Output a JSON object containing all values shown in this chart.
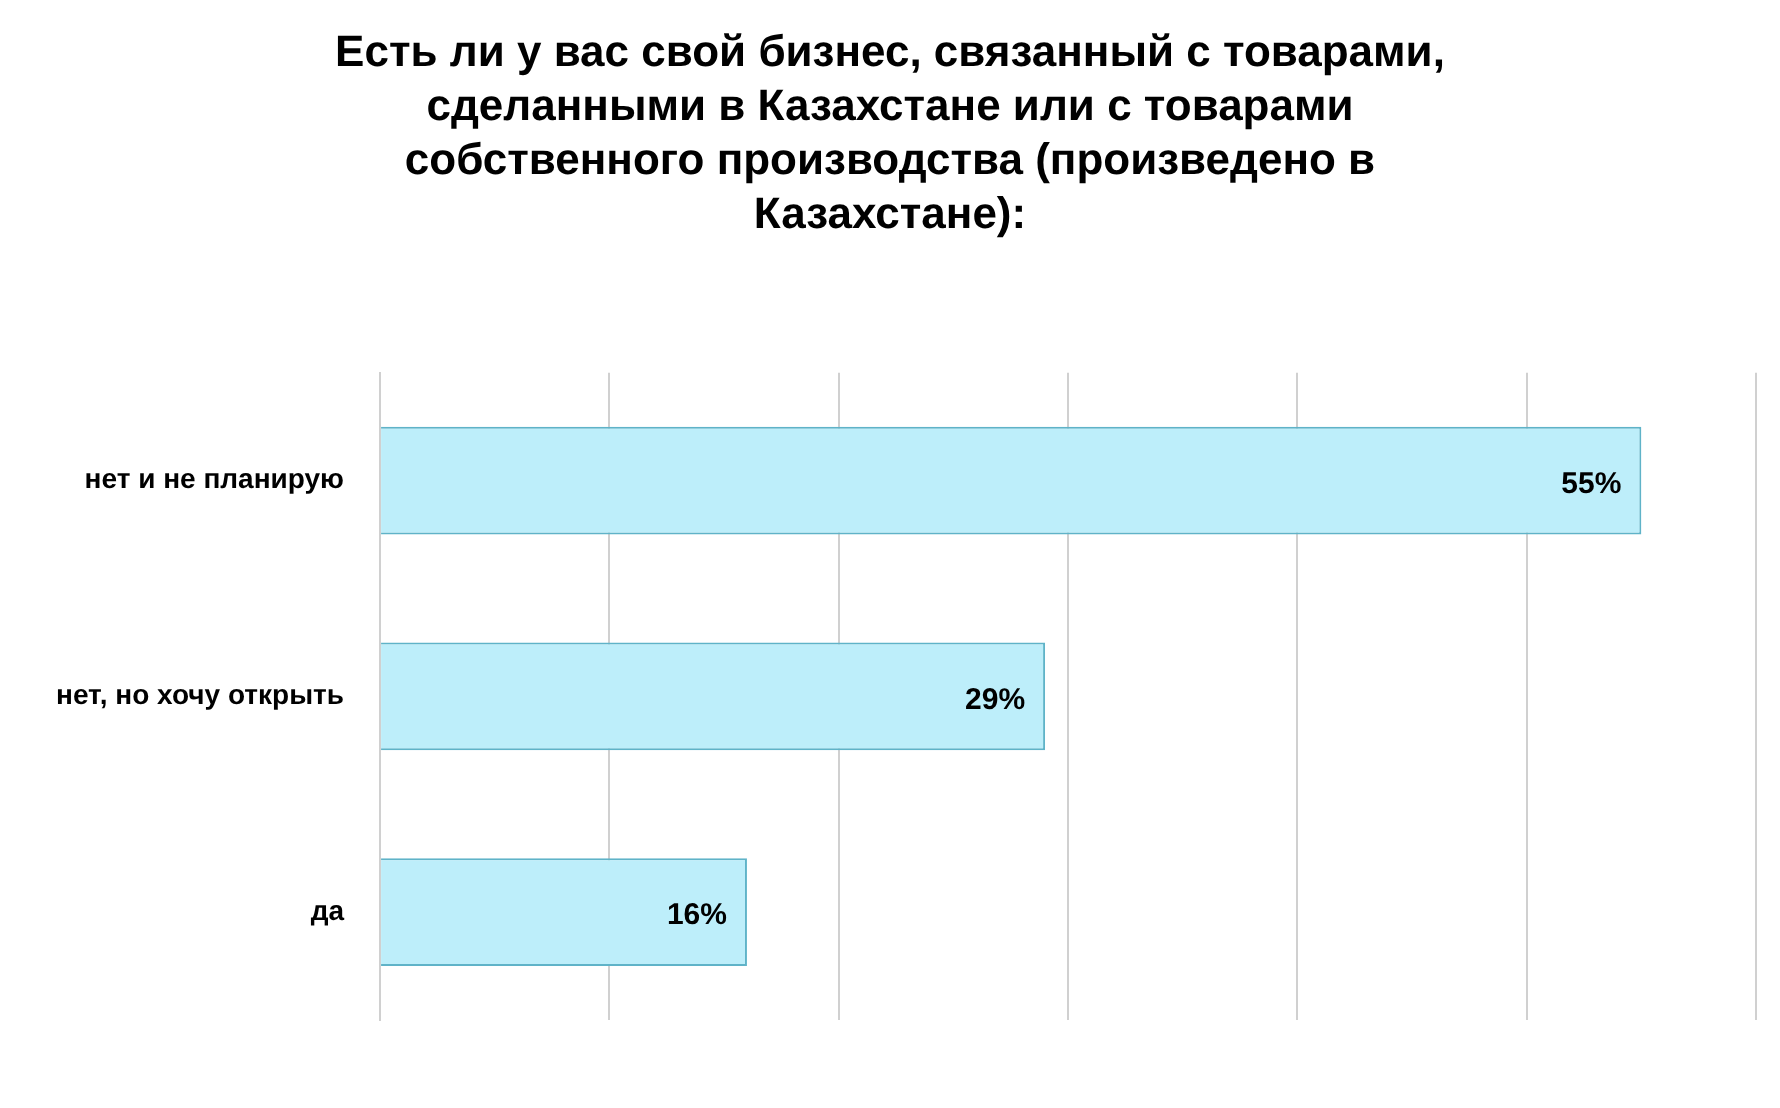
{
  "chart_data": {
    "type": "bar",
    "orientation": "horizontal",
    "title": "Есть ли у вас свой бизнес, связанный с товарами, сделанными в Казахстане или с товарами собственного производства (произведено в Казахстане):",
    "categories": [
      "нет и не планирую",
      "нет, но хочу открыть",
      "да"
    ],
    "values": [
      55,
      29,
      16
    ],
    "color": "#bdeefa",
    "data_labels": true,
    "value_labels": [
      "55%",
      "29%",
      "16%"
    ],
    "xlim": [
      0,
      60
    ],
    "xticks": [
      {
        "value": 0,
        "label": null
      },
      {
        "value": 10,
        "label": null
      },
      {
        "value": 20,
        "label": null
      },
      {
        "value": 30,
        "label": null
      },
      {
        "value": 40,
        "label": null
      },
      {
        "value": 50,
        "label": null
      },
      {
        "value": 60,
        "label": null
      }
    ],
    "grid": "x",
    "tick_labels": "y",
    "legend": false
  }
}
